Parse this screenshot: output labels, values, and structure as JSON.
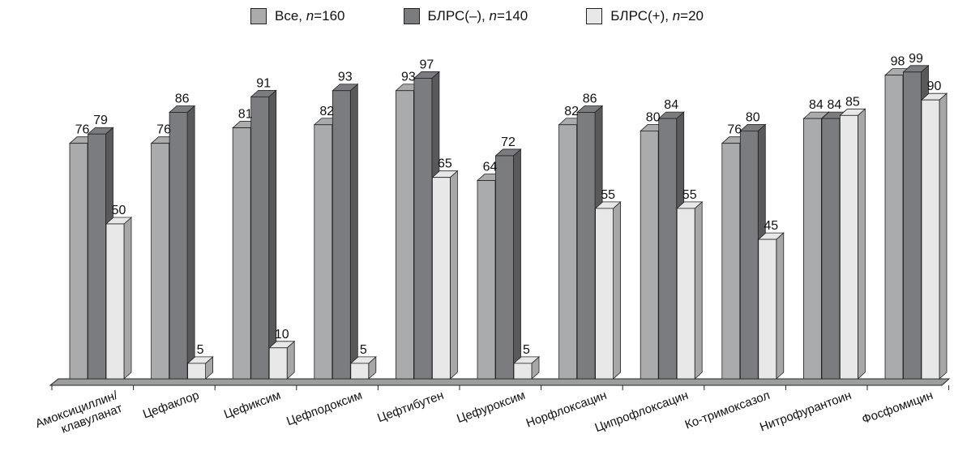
{
  "chart_data": {
    "type": "bar",
    "categories": [
      "Амоксициллин/ клавуланат",
      "Цефаклор",
      "Цефиксим",
      "Цефподоксим",
      "Цефтибутен",
      "Цефуроксим",
      "Норфлоксацин",
      "Ципрофлоксацин",
      "Ко-тримоксазол",
      "Нитрофурантоин",
      "Фосфомицин"
    ],
    "series": [
      {
        "name": "Все, n=160",
        "name_prefix": "Все, ",
        "name_var": "n",
        "name_suffix": "=160",
        "color": "#a9abad",
        "values": [
          76,
          76,
          81,
          82,
          93,
          64,
          82,
          80,
          76,
          84,
          98
        ]
      },
      {
        "name": "БЛРС(–), n=140",
        "name_prefix": "БЛРС(–), ",
        "name_var": "n",
        "name_suffix": "=140",
        "color": "#7b7c7f",
        "values": [
          79,
          86,
          91,
          93,
          97,
          72,
          86,
          84,
          80,
          84,
          99
        ]
      },
      {
        "name": "БЛРС(+), n=20",
        "name_prefix": "БЛРС(+), ",
        "name_var": "n",
        "name_suffix": "=20",
        "color": "#e8e8e8",
        "values": [
          50,
          5,
          10,
          5,
          65,
          5,
          55,
          55,
          45,
          85,
          90
        ]
      }
    ],
    "ylim": [
      0,
      100
    ],
    "grid": false,
    "legend_position": "top",
    "style": "3d-bars"
  }
}
